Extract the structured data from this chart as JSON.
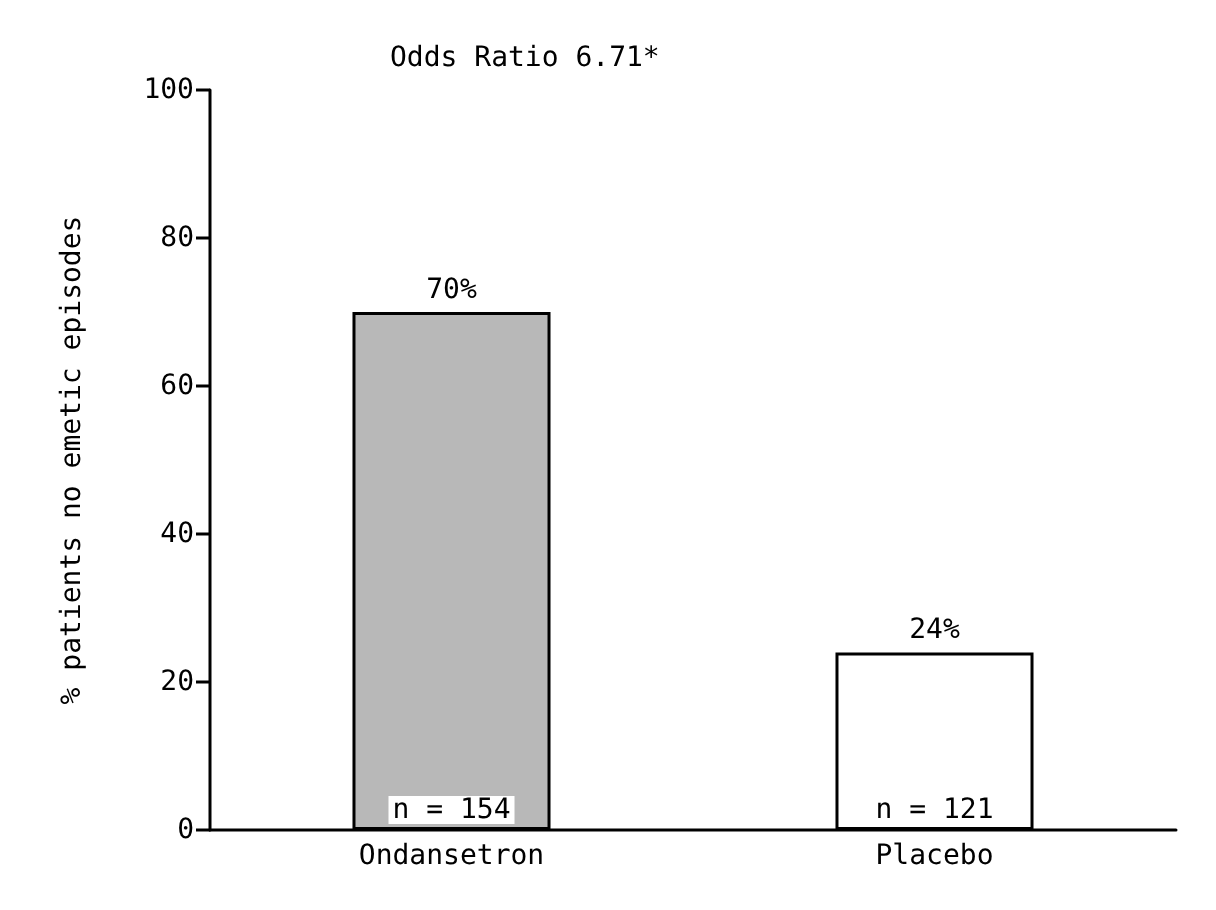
{
  "chart_data": {
    "type": "bar",
    "ylabel": "% patients no emetic episodes",
    "categories": [
      "Ondansetron",
      "Placebo"
    ],
    "values": [
      70,
      24
    ],
    "value_labels": [
      "70%",
      "24%"
    ],
    "colors": [
      "#b8b8b8",
      "#ffffff"
    ],
    "ylim": [
      0,
      100
    ],
    "yticks": [
      0,
      20,
      40,
      60,
      80,
      100
    ],
    "grid": false,
    "annotations": [
      "Odds Ratio 6.71*",
      "n = 154",
      "n = 121"
    ]
  }
}
